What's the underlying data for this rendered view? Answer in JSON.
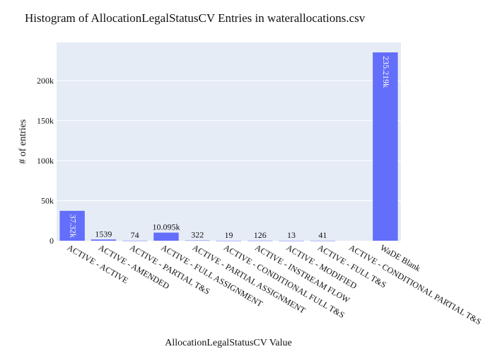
{
  "chart_data": {
    "type": "bar",
    "title": "Histogram of AllocationLegalStatusCV Entries in waterallocations.csv",
    "xlabel": "AllocationLegalStatusCV Value",
    "ylabel": "# of entries",
    "categories": [
      "ACTIVE - ACTIVE",
      "ACTIVE - AMENDED",
      "ACTIVE - PARTIAL T&S",
      "ACTIVE - FULL ASSIGNMENT",
      "ACTIVE - PARTIAL ASSIGNMENT",
      "ACTIVE - CONDITIONAL FULL T&S",
      "ACTIVE - INSTREAM FLOW",
      "ACTIVE - MODIFIED",
      "ACTIVE - FULL T&S",
      "ACTIVE - CONDITIONAL PARTIAL T&S",
      "WaDE Blank"
    ],
    "values": [
      37320,
      1539,
      74,
      10095,
      322,
      19,
      126,
      13,
      41,
      0,
      235219
    ],
    "data_labels": [
      "37.32k",
      "1539",
      "74",
      "10.095k",
      "322",
      "19",
      "126",
      "13",
      "41",
      "",
      "235.219k"
    ],
    "ylim": [
      0,
      247600
    ],
    "yticks": [
      0,
      50000,
      100000,
      150000,
      200000
    ],
    "ytick_labels": [
      "0",
      "50k",
      "100k",
      "150k",
      "200k"
    ],
    "grid": true,
    "bar_color": "#636efa",
    "plot_background": "#e5ecf6",
    "grid_color": "#ffffff"
  }
}
